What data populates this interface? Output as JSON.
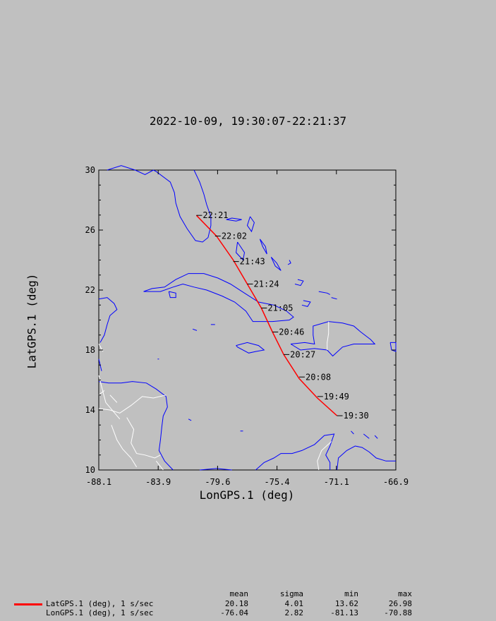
{
  "chart_data": {
    "type": "line",
    "title": "2022-10-09, 19:30:07-22:21:37",
    "xlabel": "LonGPS.1 (deg)",
    "ylabel": "LatGPS.1 (deg)",
    "xlim": [
      -88.1,
      -66.9
    ],
    "ylim": [
      10,
      30
    ],
    "xticks": [
      "-88.1",
      "-83.9",
      "-79.6",
      "-75.4",
      "-71.1",
      "-66.9"
    ],
    "yticks": [
      "10",
      "14",
      "18",
      "22",
      "26",
      "30"
    ],
    "grid": false,
    "series": [
      {
        "name": "LatGPS.1 (deg), 1 s/sec",
        "color": "#ff0000",
        "points": [
          [
            -71.1,
            13.62
          ],
          [
            -72.5,
            14.8
          ],
          [
            -73.8,
            16.1
          ],
          [
            -74.9,
            17.7
          ],
          [
            -75.7,
            19.2
          ],
          [
            -76.5,
            20.8
          ],
          [
            -77.5,
            22.4
          ],
          [
            -78.5,
            24.0
          ],
          [
            -79.7,
            25.6
          ],
          [
            -81.13,
            26.98
          ]
        ]
      }
    ],
    "time_labels": [
      {
        "text": "19:30",
        "lon": -71.1,
        "lat": 13.62
      },
      {
        "text": "19:49",
        "lon": -72.5,
        "lat": 14.9
      },
      {
        "text": "20:08",
        "lon": -73.8,
        "lat": 16.2
      },
      {
        "text": "20:27",
        "lon": -74.9,
        "lat": 17.7
      },
      {
        "text": "20:46",
        "lon": -75.7,
        "lat": 19.2
      },
      {
        "text": "21:05",
        "lon": -76.5,
        "lat": 20.8
      },
      {
        "text": "21:24",
        "lon": -77.5,
        "lat": 22.4
      },
      {
        "text": "21:43",
        "lon": -78.5,
        "lat": 23.9
      },
      {
        "text": "22:02",
        "lon": -79.8,
        "lat": 25.6
      },
      {
        "text": "22:21",
        "lon": -81.13,
        "lat": 26.98
      }
    ],
    "coastline_color": "#0000ff",
    "border_color": "#ffffff"
  },
  "stats": {
    "headers": [
      "mean",
      "sigma",
      "min",
      "max"
    ],
    "rows": [
      {
        "label": "LatGPS.1 (deg), 1 s/sec",
        "mean": "20.18",
        "sigma": "4.01",
        "min": "13.62",
        "max": "26.98"
      },
      {
        "label": "LonGPS.1 (deg), 1 s/sec",
        "mean": "-76.04",
        "sigma": "2.82",
        "min": "-81.13",
        "max": "-70.88"
      }
    ]
  }
}
